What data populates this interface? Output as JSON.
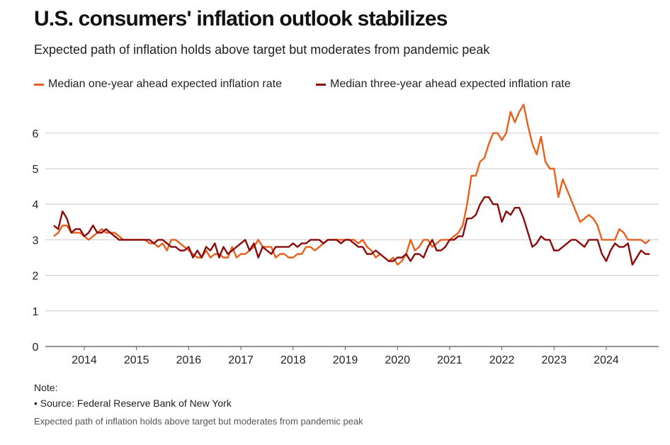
{
  "chart_data": {
    "type": "line",
    "title": "U.S. consumers' inflation outlook stabilizes",
    "subtitle": "Expected path of inflation holds above target but moderates from pandemic peak",
    "xlabel": "",
    "ylabel": "",
    "x_start": "2013-06",
    "x_end": "2024-11",
    "x_ticks": [
      "2014",
      "2015",
      "2016",
      "2017",
      "2018",
      "2019",
      "2020",
      "2021",
      "2022",
      "2023",
      "2024"
    ],
    "y_ticks": [
      "0",
      "1",
      "2",
      "3",
      "4",
      "5",
      "6"
    ],
    "ylim": [
      0,
      6.8
    ],
    "grid": "horizontal",
    "legend": "top-left",
    "series": [
      {
        "name": "Median one-year ahead expected inflation rate",
        "color": "#e8601c",
        "values": [
          3.1,
          3.2,
          3.4,
          3.4,
          3.2,
          3.2,
          3.2,
          3.1,
          3.0,
          3.1,
          3.2,
          3.3,
          3.2,
          3.2,
          3.2,
          3.1,
          3.0,
          3.0,
          3.0,
          3.0,
          3.0,
          3.0,
          2.9,
          2.9,
          2.8,
          2.9,
          2.7,
          3.0,
          3.0,
          2.9,
          2.8,
          2.7,
          2.6,
          2.5,
          2.5,
          2.7,
          2.5,
          2.6,
          2.6,
          2.5,
          2.5,
          2.8,
          2.5,
          2.6,
          2.6,
          2.7,
          2.8,
          3.0,
          2.8,
          2.8,
          2.8,
          2.5,
          2.6,
          2.6,
          2.5,
          2.5,
          2.6,
          2.6,
          2.8,
          2.8,
          2.7,
          2.8,
          2.9,
          3.0,
          3.0,
          3.0,
          3.0,
          3.0,
          3.0,
          3.0,
          2.9,
          3.0,
          2.8,
          2.7,
          2.5,
          2.6,
          2.5,
          2.4,
          2.5,
          2.3,
          2.4,
          2.6,
          3.0,
          2.7,
          2.8,
          3.0,
          3.0,
          2.8,
          2.9,
          3.0,
          3.0,
          3.0,
          3.1,
          3.2,
          3.4,
          4.0,
          4.8,
          4.8,
          5.2,
          5.3,
          5.7,
          6.0,
          6.0,
          5.8,
          6.0,
          6.6,
          6.3,
          6.6,
          6.8,
          6.2,
          5.7,
          5.4,
          5.9,
          5.2,
          5.0,
          5.0,
          4.2,
          4.7,
          4.4,
          4.1,
          3.8,
          3.5,
          3.6,
          3.7,
          3.6,
          3.4,
          3.0,
          3.0,
          3.0,
          3.0,
          3.3,
          3.2,
          3.0,
          3.0,
          3.0,
          3.0,
          2.9,
          3.0
        ]
      },
      {
        "name": "Median three-year ahead expected inflation rate",
        "color": "#8b0a0a",
        "values": [
          3.4,
          3.3,
          3.8,
          3.6,
          3.2,
          3.3,
          3.3,
          3.1,
          3.2,
          3.4,
          3.2,
          3.2,
          3.3,
          3.2,
          3.1,
          3.0,
          3.0,
          3.0,
          3.0,
          3.0,
          3.0,
          3.0,
          3.0,
          2.9,
          3.0,
          3.0,
          2.9,
          2.8,
          2.8,
          2.7,
          2.7,
          2.8,
          2.5,
          2.7,
          2.5,
          2.8,
          2.7,
          2.9,
          2.5,
          2.8,
          2.6,
          2.7,
          2.8,
          2.9,
          3.0,
          2.7,
          2.9,
          2.5,
          2.8,
          2.7,
          2.6,
          2.8,
          2.8,
          2.8,
          2.8,
          2.9,
          2.8,
          2.9,
          2.9,
          3.0,
          3.0,
          3.0,
          2.9,
          3.0,
          3.0,
          3.0,
          2.9,
          3.0,
          3.0,
          2.9,
          2.8,
          2.8,
          2.6,
          2.6,
          2.7,
          2.6,
          2.5,
          2.4,
          2.4,
          2.5,
          2.5,
          2.6,
          2.4,
          2.6,
          2.6,
          2.5,
          2.8,
          3.0,
          2.7,
          2.7,
          2.8,
          3.0,
          3.0,
          3.1,
          3.1,
          3.6,
          3.6,
          3.7,
          4.0,
          4.2,
          4.2,
          4.0,
          4.0,
          3.5,
          3.8,
          3.7,
          3.9,
          3.9,
          3.6,
          3.2,
          2.8,
          2.9,
          3.1,
          3.0,
          3.0,
          2.7,
          2.7,
          2.8,
          2.9,
          3.0,
          3.0,
          2.9,
          2.8,
          3.0,
          3.0,
          3.0,
          2.6,
          2.4,
          2.7,
          2.9,
          2.8,
          2.8,
          2.9,
          2.3,
          2.5,
          2.7,
          2.6,
          2.6
        ]
      }
    ]
  },
  "notes": {
    "heading": "Note:",
    "source": "• Source: Federal Reserve Bank of New York",
    "caption": "Expected path of inflation holds above target but moderates from pandemic peak"
  }
}
